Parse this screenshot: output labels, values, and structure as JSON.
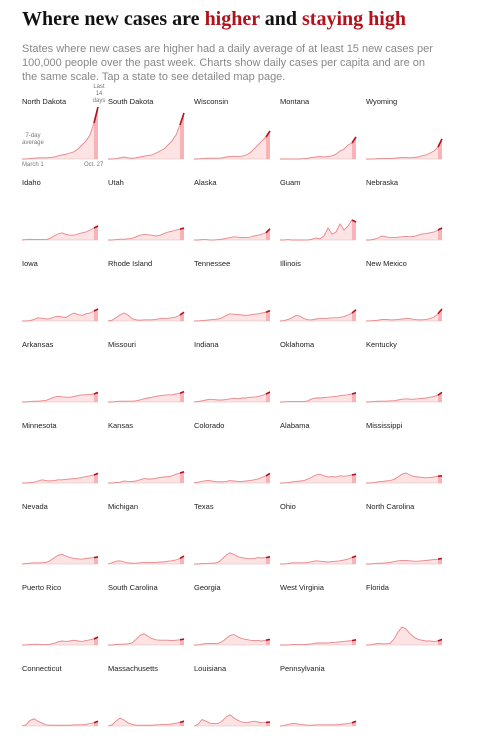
{
  "chart_data": {
    "type": "small-multiples-line",
    "title_parts": [
      {
        "text": "Where new cases are ",
        "color": "#121212"
      },
      {
        "text": "higher",
        "color": "#b3111b"
      },
      {
        "text": " and ",
        "color": "#121212"
      },
      {
        "text": "staying high",
        "color": "#b3111b"
      }
    ],
    "subtitle": "States where new cases are higher had a daily average of at least 15 new cases per 100,000 people over the past week. Charts show daily cases per capita and are on the same scale. Tap a state to see detailed map page.",
    "annotations": [
      "Last 14 days",
      "7-day average",
      "March 1",
      "Oct. 27"
    ],
    "ylim": [
      0,
      130
    ],
    "line_color": "#e9868a",
    "recent_color": "#b3111b",
    "fill_color": "#fde3e3",
    "recent_fill_color": "#f7b3b5",
    "series": [
      {
        "name": "North Dakota",
        "values": [
          0,
          0,
          1,
          2,
          3,
          3,
          3,
          4,
          5,
          8,
          10,
          12,
          15,
          18,
          25,
          35,
          45,
          60,
          90,
          130
        ]
      },
      {
        "name": "South Dakota",
        "values": [
          0,
          0,
          1,
          3,
          5,
          3,
          2,
          3,
          5,
          7,
          9,
          10,
          15,
          20,
          25,
          35,
          45,
          60,
          85,
          115
        ]
      },
      {
        "name": "Wisconsin",
        "values": [
          0,
          0,
          1,
          2,
          2,
          2,
          2,
          3,
          5,
          6,
          7,
          6,
          7,
          10,
          15,
          25,
          35,
          45,
          55,
          70
        ]
      },
      {
        "name": "Montana",
        "values": [
          0,
          0,
          0,
          0,
          0,
          0,
          1,
          2,
          4,
          5,
          6,
          5,
          6,
          8,
          12,
          20,
          25,
          35,
          40,
          55
        ]
      },
      {
        "name": "Wyoming",
        "values": [
          0,
          0,
          0,
          1,
          1,
          1,
          1,
          2,
          3,
          4,
          4,
          3,
          4,
          5,
          8,
          10,
          15,
          20,
          30,
          50
        ]
      },
      {
        "name": "Idaho",
        "values": [
          0,
          1,
          2,
          1,
          1,
          1,
          1,
          4,
          10,
          15,
          18,
          14,
          12,
          12,
          15,
          18,
          20,
          25,
          30,
          35
        ]
      },
      {
        "name": "Utah",
        "values": [
          0,
          0,
          1,
          2,
          2,
          3,
          4,
          8,
          12,
          14,
          13,
          12,
          10,
          12,
          16,
          20,
          22,
          25,
          27,
          30
        ]
      },
      {
        "name": "Alaska",
        "values": [
          0,
          0,
          1,
          1,
          0,
          0,
          1,
          2,
          4,
          6,
          8,
          7,
          6,
          6,
          7,
          10,
          12,
          15,
          18,
          28
        ]
      },
      {
        "name": "Guam",
        "values": [
          0,
          0,
          1,
          0,
          0,
          0,
          0,
          0,
          2,
          5,
          3,
          10,
          30,
          15,
          20,
          40,
          25,
          35,
          50,
          45
        ]
      },
      {
        "name": "Nebraska",
        "values": [
          0,
          0,
          2,
          5,
          10,
          8,
          6,
          6,
          7,
          8,
          9,
          8,
          9,
          12,
          15,
          16,
          18,
          20,
          25,
          30
        ]
      },
      {
        "name": "Iowa",
        "values": [
          0,
          0,
          1,
          4,
          8,
          7,
          5,
          6,
          10,
          12,
          10,
          9,
          15,
          20,
          16,
          14,
          18,
          20,
          25,
          30
        ]
      },
      {
        "name": "Rhode Island",
        "values": [
          0,
          2,
          8,
          15,
          20,
          15,
          6,
          3,
          2,
          3,
          3,
          3,
          4,
          6,
          6,
          7,
          8,
          10,
          15,
          22
        ]
      },
      {
        "name": "Tennessee",
        "values": [
          0,
          0,
          1,
          2,
          3,
          4,
          5,
          8,
          14,
          18,
          17,
          16,
          15,
          14,
          15,
          17,
          18,
          20,
          22,
          26
        ]
      },
      {
        "name": "Illinois",
        "values": [
          0,
          1,
          4,
          8,
          14,
          12,
          6,
          3,
          3,
          5,
          6,
          6,
          7,
          8,
          8,
          9,
          11,
          15,
          20,
          28
        ]
      },
      {
        "name": "New Mexico",
        "values": [
          0,
          0,
          1,
          2,
          4,
          4,
          3,
          3,
          4,
          5,
          6,
          6,
          4,
          3,
          3,
          4,
          6,
          10,
          18,
          30
        ]
      },
      {
        "name": "Arkansas",
        "values": [
          0,
          0,
          1,
          2,
          2,
          3,
          4,
          8,
          12,
          14,
          13,
          12,
          12,
          14,
          16,
          18,
          18,
          19,
          20,
          24
        ]
      },
      {
        "name": "Missouri",
        "values": [
          0,
          0,
          1,
          2,
          2,
          2,
          2,
          3,
          5,
          8,
          10,
          12,
          14,
          16,
          17,
          18,
          18,
          20,
          22,
          26
        ]
      },
      {
        "name": "Indiana",
        "values": [
          0,
          1,
          3,
          5,
          7,
          6,
          5,
          5,
          6,
          8,
          9,
          8,
          10,
          10,
          12,
          12,
          14,
          16,
          20,
          25
        ]
      },
      {
        "name": "Oklahoma",
        "values": [
          0,
          0,
          1,
          1,
          1,
          1,
          1,
          3,
          8,
          10,
          10,
          11,
          12,
          13,
          14,
          16,
          17,
          18,
          20,
          23
        ]
      },
      {
        "name": "Kentucky",
        "values": [
          0,
          0,
          1,
          2,
          2,
          2,
          3,
          3,
          5,
          7,
          8,
          7,
          7,
          8,
          9,
          10,
          12,
          14,
          17,
          24
        ]
      },
      {
        "name": "Minnesota",
        "values": [
          0,
          0,
          1,
          2,
          5,
          8,
          6,
          5,
          6,
          8,
          8,
          9,
          10,
          11,
          12,
          14,
          16,
          18,
          20,
          24
        ]
      },
      {
        "name": "Kansas",
        "values": [
          0,
          0,
          1,
          2,
          5,
          4,
          4,
          5,
          8,
          11,
          10,
          10,
          12,
          14,
          15,
          16,
          18,
          22,
          25,
          28
        ]
      },
      {
        "name": "Colorado",
        "values": [
          0,
          2,
          4,
          6,
          6,
          4,
          3,
          3,
          4,
          6,
          5,
          4,
          4,
          5,
          6,
          8,
          10,
          14,
          18,
          24
        ]
      },
      {
        "name": "Alabama",
        "values": [
          0,
          0,
          1,
          3,
          4,
          5,
          6,
          10,
          15,
          20,
          22,
          18,
          15,
          16,
          15,
          18,
          17,
          18,
          20,
          22
        ]
      },
      {
        "name": "Mississippi",
        "values": [
          0,
          0,
          1,
          3,
          4,
          5,
          6,
          9,
          15,
          22,
          25,
          20,
          16,
          15,
          14,
          13,
          14,
          15,
          17,
          18
        ]
      },
      {
        "name": "Nevada",
        "values": [
          0,
          1,
          2,
          3,
          3,
          3,
          4,
          8,
          15,
          22,
          24,
          20,
          16,
          14,
          13,
          12,
          14,
          15,
          16,
          18
        ]
      },
      {
        "name": "Michigan",
        "values": [
          0,
          3,
          7,
          8,
          5,
          3,
          2,
          2,
          3,
          4,
          4,
          4,
          4,
          5,
          5,
          7,
          8,
          10,
          14,
          20
        ]
      },
      {
        "name": "Texas",
        "values": [
          0,
          0,
          1,
          1,
          2,
          2,
          4,
          12,
          22,
          28,
          24,
          18,
          16,
          14,
          13,
          14,
          16,
          15,
          16,
          18
        ]
      },
      {
        "name": "Ohio",
        "values": [
          0,
          0,
          1,
          3,
          3,
          3,
          3,
          4,
          6,
          8,
          7,
          6,
          5,
          6,
          7,
          8,
          10,
          12,
          16,
          20
        ]
      },
      {
        "name": "North Carolina",
        "values": [
          0,
          0,
          1,
          2,
          2,
          3,
          4,
          6,
          8,
          9,
          9,
          8,
          7,
          7,
          8,
          9,
          10,
          11,
          12,
          14
        ]
      },
      {
        "name": "Puerto Rico",
        "values": [
          0,
          0,
          1,
          2,
          2,
          1,
          1,
          2,
          4,
          8,
          10,
          9,
          10,
          12,
          10,
          9,
          11,
          13,
          15,
          20
        ]
      },
      {
        "name": "South Carolina",
        "values": [
          0,
          0,
          1,
          2,
          2,
          3,
          5,
          14,
          24,
          28,
          22,
          16,
          13,
          12,
          12,
          12,
          11,
          12,
          13,
          15
        ]
      },
      {
        "name": "Georgia",
        "values": [
          0,
          0,
          2,
          4,
          4,
          4,
          4,
          8,
          16,
          24,
          26,
          20,
          16,
          14,
          12,
          11,
          11,
          10,
          12,
          14
        ]
      },
      {
        "name": "West Virginia",
        "values": [
          0,
          0,
          0,
          1,
          1,
          1,
          1,
          2,
          3,
          5,
          5,
          5,
          5,
          6,
          7,
          8,
          9,
          10,
          11,
          13
        ]
      },
      {
        "name": "Florida",
        "values": [
          0,
          0,
          2,
          4,
          3,
          3,
          4,
          15,
          32,
          45,
          40,
          28,
          20,
          14,
          12,
          10,
          10,
          9,
          10,
          14
        ]
      },
      {
        "name": "Connecticut",
        "values": [
          0,
          3,
          14,
          18,
          12,
          7,
          3,
          2,
          2,
          2,
          2,
          2,
          2,
          3,
          3,
          3,
          4,
          6,
          8,
          12
        ]
      },
      {
        "name": "Massachusetts",
        "values": [
          0,
          3,
          12,
          20,
          15,
          8,
          4,
          2,
          2,
          2,
          2,
          2,
          3,
          3,
          4,
          4,
          5,
          7,
          9,
          12
        ]
      },
      {
        "name": "Louisiana",
        "values": [
          0,
          4,
          16,
          12,
          7,
          6,
          6,
          12,
          22,
          28,
          20,
          14,
          10,
          8,
          10,
          12,
          10,
          8,
          9,
          10
        ]
      },
      {
        "name": "Pennsylvania",
        "values": [
          0,
          1,
          4,
          6,
          6,
          4,
          3,
          2,
          2,
          3,
          3,
          3,
          3,
          3,
          3,
          4,
          5,
          6,
          8,
          12
        ]
      }
    ]
  }
}
